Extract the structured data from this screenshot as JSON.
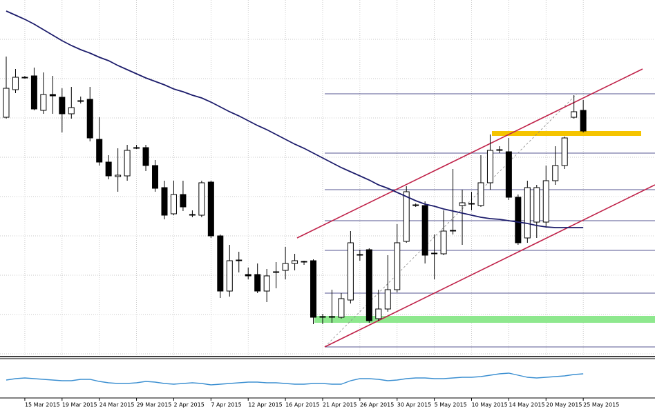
{
  "chart_data": [
    {
      "type": "candlestick",
      "categories": [
        null,
        null,
        "15 Mar 2015",
        null,
        null,
        null,
        "19 Mar 2015",
        null,
        null,
        null,
        "24 Mar 2015",
        null,
        null,
        null,
        "29 Mar 2015",
        null,
        null,
        null,
        "2 Apr 2015",
        null,
        null,
        null,
        "7 Apr 2015",
        null,
        null,
        null,
        "12 Apr 2015",
        null,
        null,
        null,
        "16 Apr 2015",
        null,
        null,
        null,
        "21 Apr 2015",
        null,
        null,
        null,
        "26 Apr 2015",
        null,
        null,
        null,
        "30 Apr 2015",
        null,
        null,
        null,
        "5 May 2015",
        null,
        null,
        null,
        "10 May 2015",
        null,
        null,
        null,
        "14 May 2015",
        null,
        null,
        null,
        "20 May 2015",
        null,
        null,
        null,
        "25 May 2015"
      ],
      "open": [
        345,
        385,
        402,
        405,
        355,
        378,
        374,
        350,
        368,
        371,
        313,
        280,
        259,
        260,
        300,
        301,
        275,
        243,
        205,
        233,
        203,
        203,
        251,
        173,
        93,
        137,
        117,
        117,
        93,
        120,
        123,
        133,
        135,
        137,
        55,
        55,
        55,
        80,
        145,
        153,
        53,
        67,
        95,
        165,
        217,
        217,
        147,
        147,
        180,
        217,
        219,
        217,
        250,
        297,
        295,
        229,
        170,
        193,
        193,
        253,
        275,
        345,
        355
      ],
      "high": [
        433,
        415,
        405,
        417,
        410,
        405,
        387,
        389,
        375,
        389,
        345,
        290,
        300,
        305,
        305,
        305,
        283,
        253,
        253,
        253,
        210,
        253,
        253,
        175,
        160,
        150,
        127,
        133,
        125,
        135,
        157,
        147,
        137,
        139,
        60,
        95,
        90,
        180,
        153,
        155,
        95,
        145,
        190,
        245,
        220,
        223,
        175,
        210,
        270,
        240,
        237,
        290,
        320,
        303,
        315,
        233,
        253,
        247,
        275,
        303,
        317,
        377,
        370
      ],
      "low": [
        343,
        380,
        401,
        355,
        350,
        350,
        323,
        343,
        365,
        310,
        275,
        255,
        237,
        253,
        299,
        267,
        237,
        197,
        203,
        209,
        200,
        200,
        170,
        83,
        85,
        120,
        110,
        90,
        77,
        97,
        110,
        123,
        131,
        45,
        45,
        47,
        53,
        75,
        137,
        47,
        50,
        63,
        91,
        163,
        215,
        133,
        110,
        145,
        175,
        160,
        210,
        215,
        240,
        293,
        225,
        160,
        163,
        170,
        185,
        247,
        270,
        343,
        323
      ],
      "close": [
        387,
        403,
        403,
        357,
        378,
        376,
        350,
        359,
        369,
        315,
        280,
        260,
        261,
        297,
        301,
        275,
        242,
        203,
        233,
        215,
        204,
        250,
        173,
        93,
        137,
        138,
        115,
        93,
        115,
        121,
        133,
        137,
        136,
        55,
        56,
        56,
        82,
        163,
        146,
        50,
        67,
        95,
        163,
        237,
        218,
        145,
        148,
        180,
        181,
        221,
        220,
        250,
        297,
        298,
        229,
        163,
        243,
        243,
        253,
        275,
        315,
        353,
        325
      ],
      "up_color": "#ffffff",
      "down_color": "#000000",
      "series": [
        {
          "color": "#1c1c6b",
          "values": [
            499,
            493,
            487,
            480,
            472,
            464,
            456,
            449,
            443,
            438,
            432,
            427,
            420,
            414,
            408,
            402,
            397,
            392,
            386,
            382,
            377,
            373,
            367,
            360,
            353,
            347,
            340,
            333,
            327,
            320,
            313,
            306,
            300,
            293,
            286,
            279,
            272,
            266,
            260,
            254,
            247,
            242,
            236,
            230,
            224,
            219,
            216,
            212,
            209,
            206,
            203,
            200,
            198,
            197,
            195,
            193,
            191,
            188,
            186,
            185,
            185,
            185,
            185
          ]
        }
      ],
      "ylim": [
        0,
        515
      ],
      "yticks": [
        2,
        59,
        116,
        173,
        230,
        287,
        344,
        401,
        458
      ],
      "grid": true
    },
    {
      "type": "line",
      "color": "#3b8fd1",
      "values": [
        21,
        23,
        24,
        23,
        22,
        21,
        20,
        20,
        22,
        22,
        19,
        17,
        16,
        16,
        17,
        19,
        18,
        16,
        15,
        16,
        17,
        16,
        14,
        15,
        16,
        17,
        18,
        18,
        17,
        17,
        16,
        15,
        15,
        16,
        16,
        15,
        15,
        20,
        23,
        23,
        22,
        20,
        21,
        23,
        24,
        24,
        23,
        23,
        24,
        25,
        25,
        26,
        28,
        30,
        31,
        28,
        25,
        24,
        25,
        26,
        27,
        29,
        30
      ],
      "ylim": [
        0,
        50
      ]
    }
  ]
}
